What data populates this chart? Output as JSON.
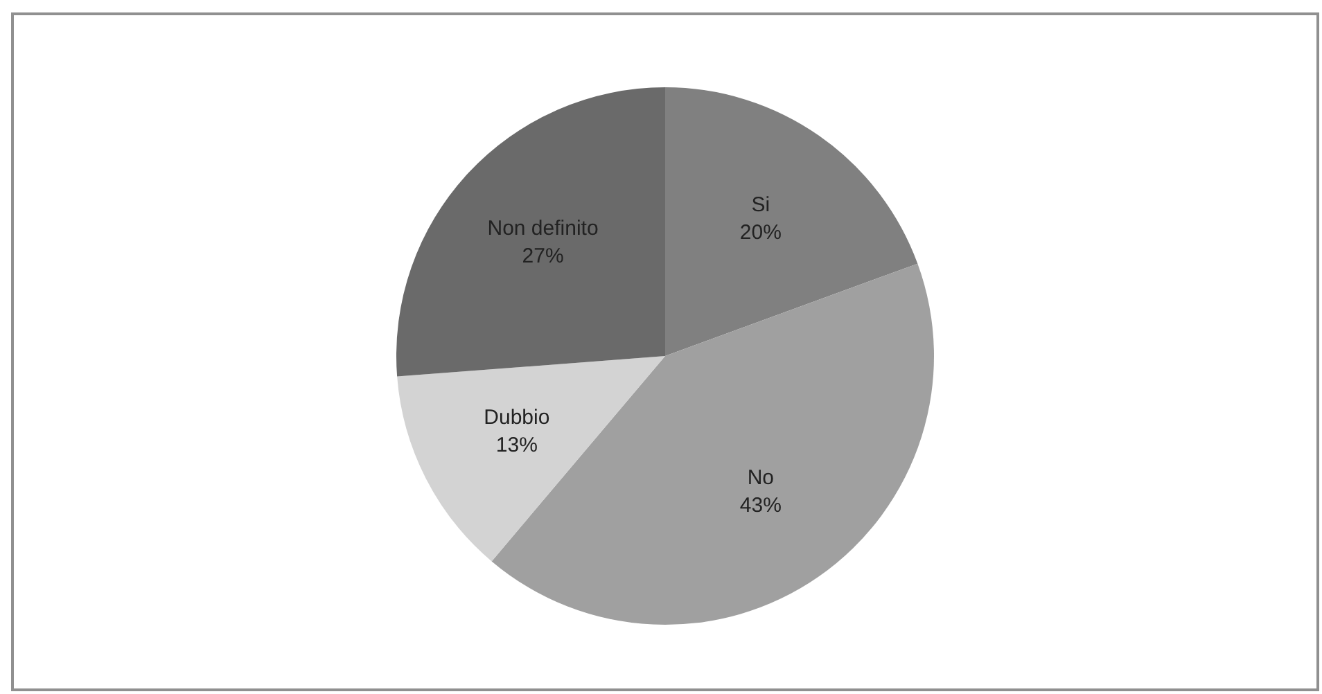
{
  "chart_data": {
    "type": "pie",
    "categories": [
      "Si",
      "No",
      "Dubbio",
      "Non definito"
    ],
    "values": [
      20,
      43,
      13,
      27
    ],
    "value_labels": [
      "20%",
      "43%",
      "13%",
      "27%"
    ],
    "colors": [
      "#808080",
      "#a0a0a0",
      "#d3d3d3",
      "#6a6a6a"
    ]
  }
}
